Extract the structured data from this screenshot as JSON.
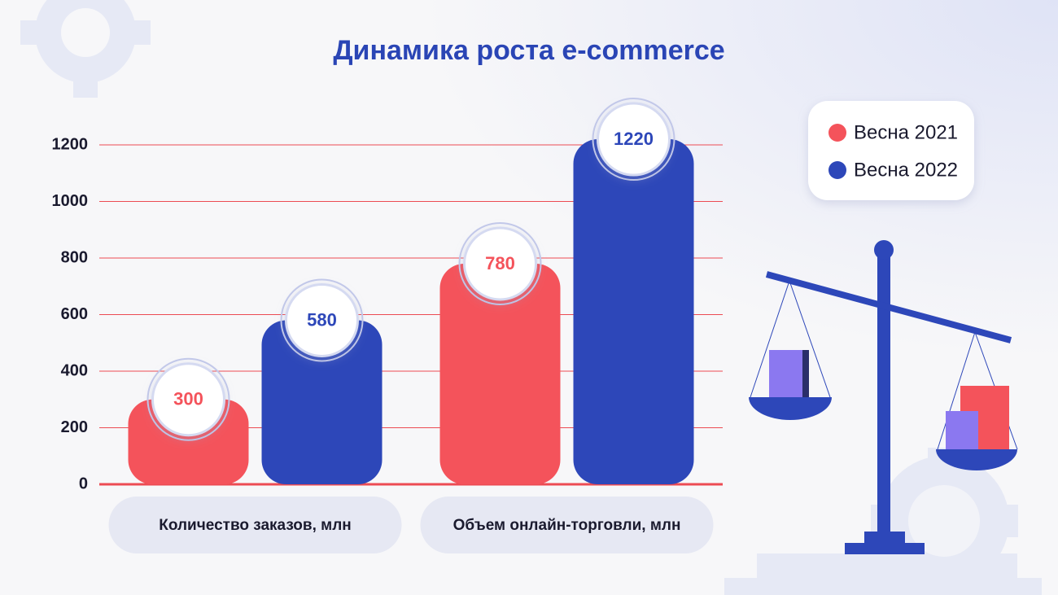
{
  "chart_data": {
    "type": "bar",
    "title": "Динамика роста e-commerce",
    "categories": [
      "Количество заказов, млн",
      "Объем онлайн-торговли, млн"
    ],
    "series": [
      {
        "name": "Весна 2021",
        "color": "#f4535b",
        "values": [
          300,
          780
        ]
      },
      {
        "name": "Весна 2022",
        "color": "#2d47b9",
        "values": [
          580,
          1220
        ]
      }
    ],
    "ylim": [
      0,
      1200
    ],
    "yticks": [
      0,
      200,
      400,
      600,
      800,
      1000,
      1200
    ],
    "grid": true,
    "legend": "upper right"
  }
}
